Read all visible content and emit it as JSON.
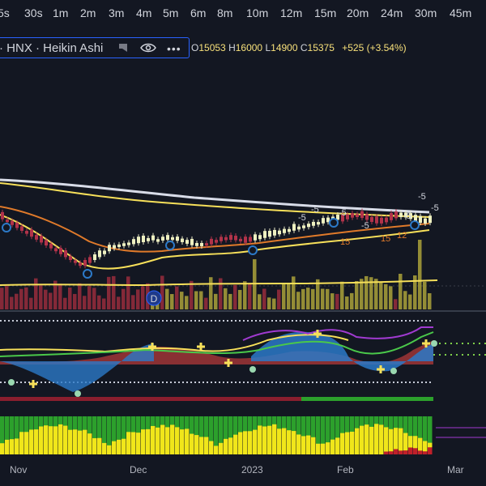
{
  "timeframes": [
    "5s",
    "30s",
    "1m",
    "2m",
    "3m",
    "4m",
    "5m",
    "6m",
    "8m",
    "10m",
    "12m",
    "15m",
    "20m",
    "24m",
    "30m",
    "45m"
  ],
  "legend": {
    "symbol": "· HNX · Heikin Ashi",
    "flag_icon": "flag-icon",
    "eye_icon": "eye-icon",
    "more_icon": "more-dots-icon",
    "open_label": "O",
    "open_value": "15053",
    "high_label": "H",
    "high_value": "16000",
    "low_label": "L",
    "low_value": "14900",
    "close_label": "C",
    "close_value": "15375",
    "change": "+525 (+3.54%)"
  },
  "marker_letter": "D",
  "x_axis_labels": [
    "Nov",
    "Dec",
    "2023",
    "Feb",
    "Mar"
  ],
  "annotations": [
    "-5",
    "-5",
    "-5",
    "-5",
    "-5",
    "-5",
    "-5",
    "15",
    "15",
    "12"
  ],
  "colors": {
    "background": "#131722",
    "bull": "#c8c85a",
    "bear": "#b2334a",
    "yellow": "#f7e05a",
    "white_ma": "#d8dce8",
    "orange_ma": "#e07a2a",
    "green": "#2ca02c",
    "blue": "#2c79c8",
    "accent": "#2962ff"
  }
}
